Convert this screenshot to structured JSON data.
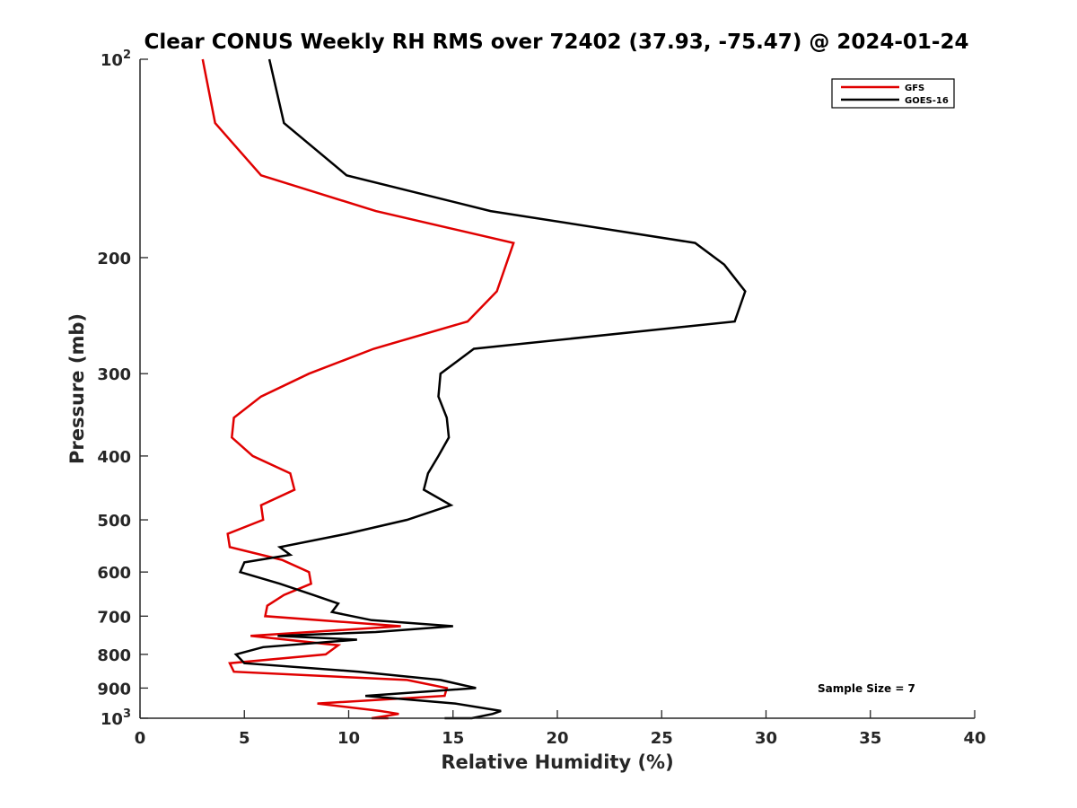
{
  "chart_data": {
    "type": "line",
    "title": "Clear CONUS Weekly RH RMS over 72402 (37.93, -75.47) @ 2024-01-24",
    "xlabel": "Relative Humidity (%)",
    "ylabel": "Pressure (mb)",
    "xlim": [
      0,
      40
    ],
    "ylim": [
      100,
      1000
    ],
    "yscale": "log",
    "y_reversed": true,
    "xticks": [
      0,
      5,
      10,
      15,
      20,
      25,
      30,
      35,
      40
    ],
    "xtick_labels": [
      "0",
      "5",
      "10",
      "15",
      "20",
      "25",
      "30",
      "35",
      "40"
    ],
    "yticks": [
      100,
      200,
      300,
      400,
      500,
      600,
      700,
      800,
      900,
      1000
    ],
    "ytick_labels": [
      {
        "base": "10",
        "exp": "2"
      },
      {
        "base": "200",
        "exp": ""
      },
      {
        "base": "300",
        "exp": ""
      },
      {
        "base": "400",
        "exp": ""
      },
      {
        "base": "500",
        "exp": ""
      },
      {
        "base": "600",
        "exp": ""
      },
      {
        "base": "700",
        "exp": ""
      },
      {
        "base": "800",
        "exp": ""
      },
      {
        "base": "900",
        "exp": ""
      },
      {
        "base": "10",
        "exp": "3"
      }
    ],
    "legend_position": "top-right",
    "annotation": "Sample Size = 7",
    "series": [
      {
        "name": "GFS",
        "color": "#e00000",
        "points": [
          [
            3.0,
            100
          ],
          [
            3.6,
            125
          ],
          [
            5.8,
            150
          ],
          [
            11.3,
            170
          ],
          [
            17.9,
            190
          ],
          [
            17.1,
            225
          ],
          [
            15.7,
            250
          ],
          [
            11.2,
            275
          ],
          [
            8.1,
            300
          ],
          [
            5.8,
            325
          ],
          [
            4.5,
            350
          ],
          [
            4.4,
            375
          ],
          [
            5.4,
            400
          ],
          [
            7.2,
            425
          ],
          [
            7.4,
            450
          ],
          [
            5.8,
            475
          ],
          [
            5.9,
            500
          ],
          [
            4.2,
            525
          ],
          [
            4.3,
            550
          ],
          [
            6.8,
            575
          ],
          [
            8.1,
            600
          ],
          [
            8.2,
            625
          ],
          [
            6.9,
            650
          ],
          [
            6.1,
            675
          ],
          [
            6.0,
            700
          ],
          [
            12.5,
            725
          ],
          [
            5.3,
            750
          ],
          [
            9.5,
            775
          ],
          [
            8.9,
            800
          ],
          [
            4.3,
            825
          ],
          [
            4.5,
            850
          ],
          [
            12.8,
            875
          ],
          [
            14.7,
            900
          ],
          [
            14.6,
            925
          ],
          [
            8.5,
            950
          ],
          [
            11.5,
            975
          ],
          [
            12.4,
            985
          ],
          [
            11.1,
            1000
          ],
          [
            11.9,
            1000
          ]
        ]
      },
      {
        "name": "GOES-16",
        "color": "#000000",
        "points": [
          [
            6.2,
            100
          ],
          [
            6.9,
            125
          ],
          [
            9.9,
            150
          ],
          [
            16.8,
            170
          ],
          [
            26.6,
            190
          ],
          [
            28.0,
            205
          ],
          [
            29.0,
            225
          ],
          [
            28.5,
            250
          ],
          [
            16.0,
            275
          ],
          [
            14.4,
            300
          ],
          [
            14.3,
            325
          ],
          [
            14.7,
            350
          ],
          [
            14.8,
            375
          ],
          [
            14.3,
            400
          ],
          [
            13.8,
            425
          ],
          [
            13.6,
            450
          ],
          [
            14.9,
            475
          ],
          [
            12.8,
            500
          ],
          [
            9.9,
            525
          ],
          [
            6.7,
            550
          ],
          [
            7.2,
            565
          ],
          [
            5.0,
            580
          ],
          [
            4.8,
            600
          ],
          [
            6.7,
            625
          ],
          [
            8.3,
            650
          ],
          [
            9.5,
            670
          ],
          [
            9.2,
            690
          ],
          [
            11.1,
            710
          ],
          [
            15.0,
            725
          ],
          [
            11.3,
            740
          ],
          [
            6.6,
            750
          ],
          [
            10.4,
            760
          ],
          [
            5.9,
            780
          ],
          [
            4.6,
            800
          ],
          [
            5.0,
            825
          ],
          [
            10.5,
            850
          ],
          [
            14.4,
            875
          ],
          [
            16.1,
            900
          ],
          [
            10.8,
            925
          ],
          [
            15.1,
            950
          ],
          [
            17.3,
            975
          ],
          [
            16.9,
            985
          ],
          [
            15.9,
            1000
          ],
          [
            14.6,
            1000
          ]
        ]
      }
    ]
  }
}
